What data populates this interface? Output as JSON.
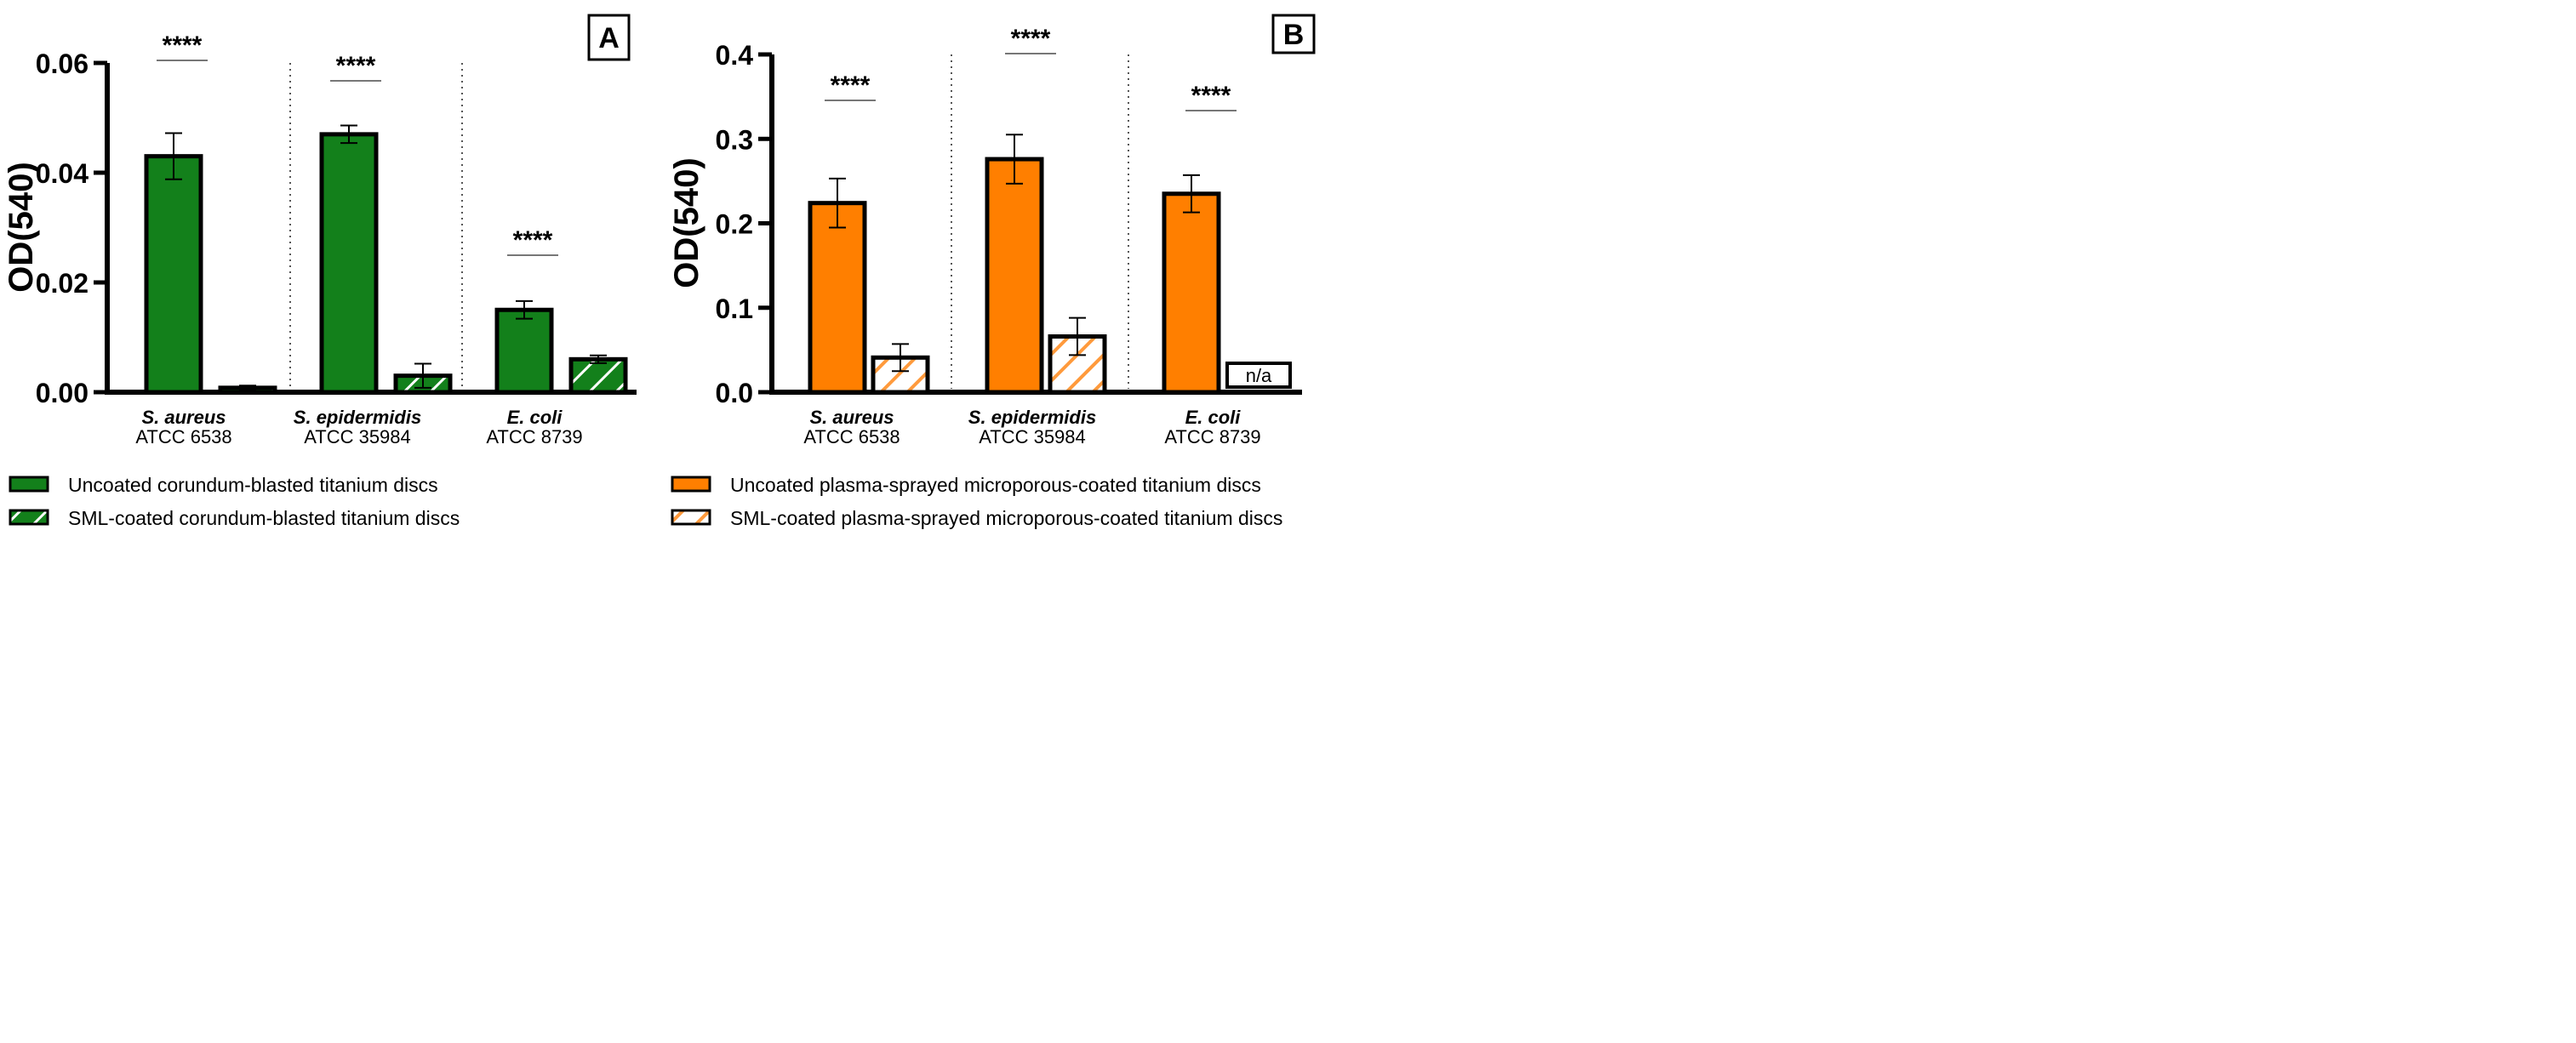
{
  "chart_data": [
    {
      "type": "bar",
      "panel_label": "A",
      "ylabel": "OD(540)",
      "xlabel": "",
      "ylim": [
        0,
        0.06
      ],
      "yticks": [
        "0.00",
        "0.02",
        "0.04",
        "0.06"
      ],
      "ytick_values": [
        0,
        0.02,
        0.04,
        0.06
      ],
      "categories": [
        {
          "name": "S. aureus",
          "strain": "ATCC 6538"
        },
        {
          "name": "S.  epidermidis",
          "strain": "ATCC 35984"
        },
        {
          "name": "E. coli",
          "strain": "ATCC 8739"
        }
      ],
      "series": [
        {
          "name": "Uncoated corundum-blasted titanium discs",
          "values": [
            0.043,
            0.047,
            0.015
          ],
          "errors": [
            0.0042,
            0.0016,
            0.0016
          ],
          "color": "#13801b",
          "hatched": false
        },
        {
          "name": "SML-coated corundum-blasted titanium discs",
          "values": [
            0.0008,
            0.003,
            0.006
          ],
          "errors": [
            0.0004,
            0.0022,
            0.0007
          ],
          "color": "#13801b",
          "hatched": true
        }
      ],
      "significance": [
        "****",
        "****",
        "****"
      ],
      "missing_label": "",
      "missing": []
    },
    {
      "type": "bar",
      "panel_label": "B",
      "ylabel": "OD(540)",
      "xlabel": "",
      "ylim": [
        0,
        0.4
      ],
      "yticks": [
        "0.0",
        "0.1",
        "0.2",
        "0.3",
        "0.4"
      ],
      "ytick_values": [
        0,
        0.1,
        0.2,
        0.3,
        0.4
      ],
      "categories": [
        {
          "name": "S. aureus",
          "strain": "ATCC 6538"
        },
        {
          "name": "S.  epidermidis",
          "strain": "ATCC 35984"
        },
        {
          "name": "E. coli",
          "strain": "ATCC 8739"
        }
      ],
      "series": [
        {
          "name": "Uncoated plasma-sprayed microporous-coated titanium discs",
          "values": [
            0.224,
            0.276,
            0.235
          ],
          "errors": [
            0.029,
            0.029,
            0.022
          ],
          "color": "#ff7f00",
          "hatched": false
        },
        {
          "name": "SML-coated plasma-sprayed microporous-coated titanium discs",
          "values": [
            0.041,
            0.066,
            0.0
          ],
          "errors": [
            0.016,
            0.022,
            0.0
          ],
          "color": "#ff7f00",
          "hatched": true
        }
      ],
      "significance": [
        "****",
        "****",
        "****"
      ],
      "missing_label": "n/a",
      "missing": [
        [
          1,
          2
        ]
      ]
    }
  ]
}
